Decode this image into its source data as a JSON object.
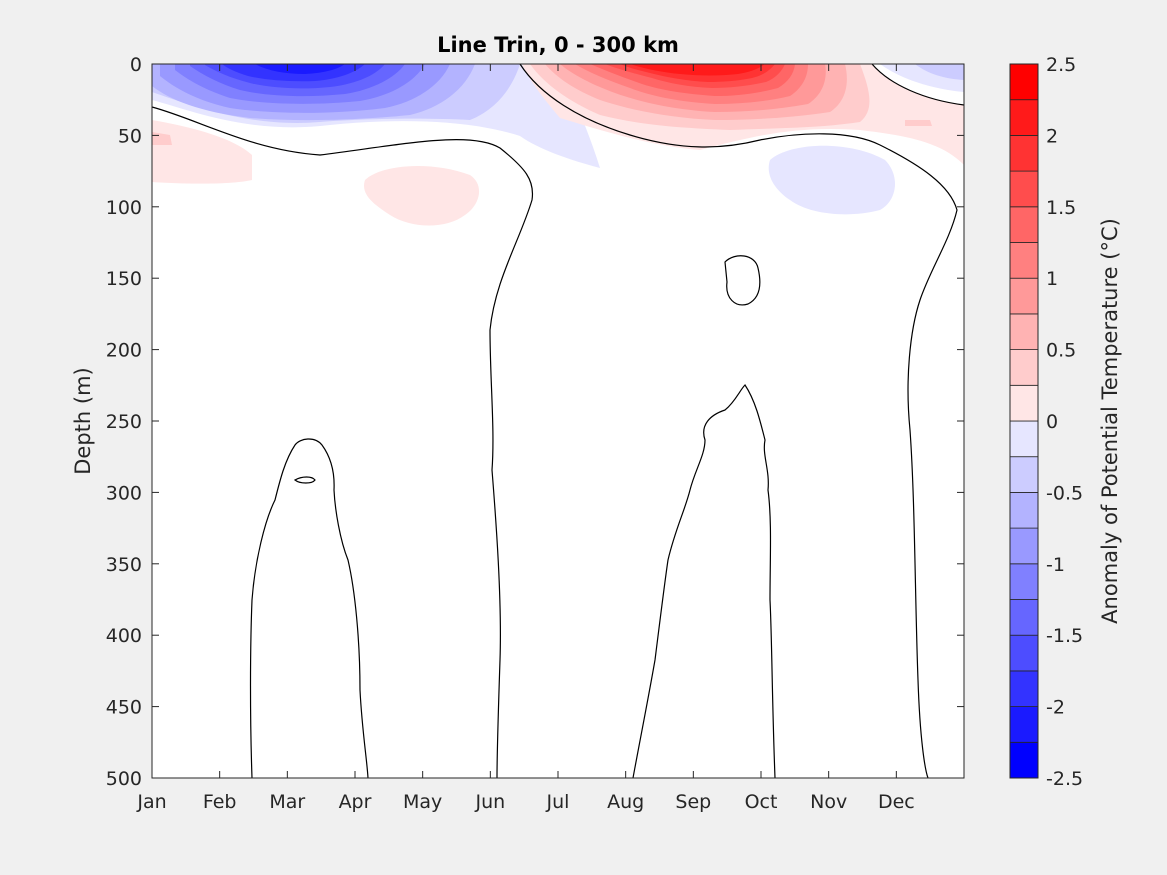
{
  "chart_data": {
    "type": "heatmap",
    "subtype": "filled contour (month vs depth section)",
    "title": "Line Trin, 0 - 300 km",
    "xlabel": "",
    "ylabel": "Depth (m)",
    "x_ticks": [
      "Jan",
      "Feb",
      "Mar",
      "Apr",
      "May",
      "Jun",
      "Jul",
      "Aug",
      "Sep",
      "Oct",
      "Nov",
      "Dec"
    ],
    "y_ticks": [
      0,
      50,
      100,
      150,
      200,
      250,
      300,
      350,
      400,
      450,
      500
    ],
    "ylim": [
      0,
      500
    ],
    "y_reversed": true,
    "grid": false,
    "colorbar": {
      "label": "Anomaly of Potential Temperature (°C)",
      "ticks": [
        2.5,
        2,
        1.5,
        1,
        0.5,
        0,
        -0.5,
        -1,
        -1.5,
        -2,
        -2.5
      ],
      "tick_labels": [
        "2.5",
        "2",
        "1.5",
        "1",
        "0.5",
        "0",
        "-0.5",
        "-1",
        "-1.5",
        "-2",
        "-2.5"
      ],
      "levels": [
        -2.5,
        -2.25,
        -2,
        -1.75,
        -1.5,
        -1.25,
        -1,
        -0.75,
        -0.5,
        -0.25,
        0,
        0.25,
        0.5,
        0.75,
        1,
        1.25,
        1.5,
        1.75,
        2,
        2.25,
        2.5
      ],
      "colors": [
        "#0000ff",
        "#1a1aff",
        "#3333ff",
        "#4d4dff",
        "#6666ff",
        "#8080ff",
        "#9999ff",
        "#b3b3ff",
        "#ccccff",
        "#e6e6ff",
        "#ffffff",
        "#ffffff",
        "#ffe6e6",
        "#ffcccc",
        "#ffb3b3",
        "#ff9999",
        "#ff8080",
        "#ff6666",
        "#ff4d4d",
        "#ff3333",
        "#ff1a1a",
        "#ff0000"
      ]
    },
    "features": [
      {
        "name": "cold surface anomaly",
        "month_center": 3.2,
        "depth_range": [
          0,
          60
        ],
        "min_anomaly": -2.2
      },
      {
        "name": "warm surface anomaly",
        "month_center": 8.8,
        "depth_range": [
          0,
          60
        ],
        "max_anomaly": 2.3
      },
      {
        "name": "weak warm anomaly",
        "month_center": 1.3,
        "depth_range": [
          40,
          85
        ],
        "value": 0.3
      },
      {
        "name": "weak warm anomaly",
        "month_center": 4.9,
        "depth_range": [
          70,
          115
        ],
        "value": 0.3
      },
      {
        "name": "weak cold anomaly",
        "month_center": 10.3,
        "depth_range": [
          60,
          105
        ],
        "value": -0.3
      }
    ]
  }
}
